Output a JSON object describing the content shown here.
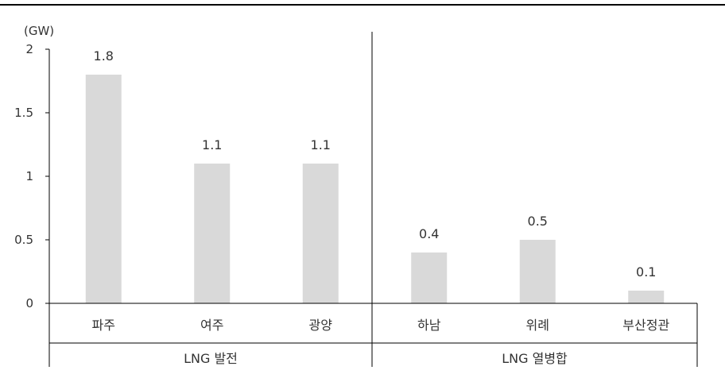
{
  "chart_data": {
    "type": "bar",
    "title": "",
    "unit_label": "(GW)",
    "xlabel": "",
    "ylabel": "",
    "ylim": [
      0,
      2
    ],
    "y_ticks": [
      "0",
      "0.5",
      "1",
      "1.5",
      "2"
    ],
    "y_tick_values": [
      0,
      0.5,
      1,
      1.5,
      2
    ],
    "categories": [
      "파주",
      "여주",
      "광양",
      "하남",
      "위례",
      "부산정관"
    ],
    "values": [
      1.8,
      1.1,
      1.1,
      0.4,
      0.5,
      0.1
    ],
    "value_labels": [
      "1.8",
      "1.1",
      "1.1",
      "0.4",
      "0.5",
      "0.1"
    ],
    "groups": [
      {
        "label": "LNG 발전",
        "categories": [
          "파주",
          "여주",
          "광양"
        ]
      },
      {
        "label": "LNG 열병합",
        "categories": [
          "하남",
          "위례",
          "부산정관"
        ]
      }
    ],
    "bar_color": "#d9d9d9",
    "axis_color": "#000000",
    "grid": false,
    "legend": "none"
  }
}
